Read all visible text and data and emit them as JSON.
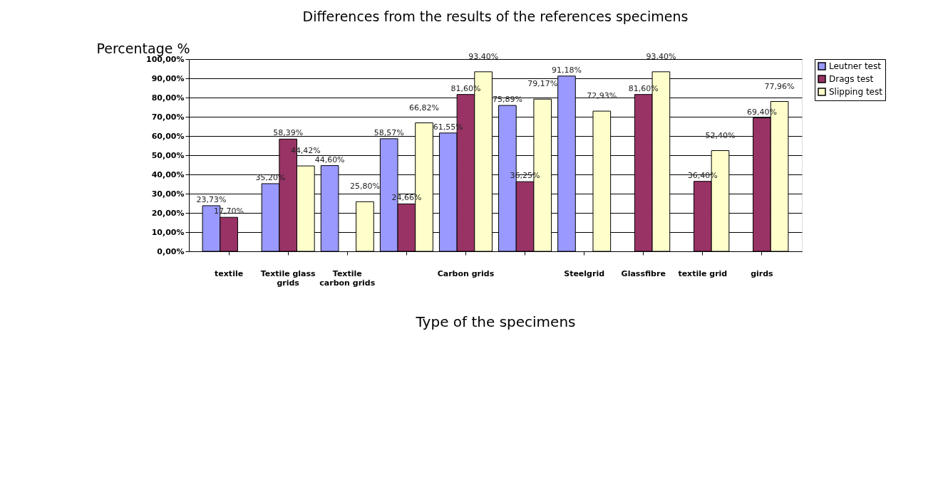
{
  "chart_data": {
    "type": "bar",
    "title": "Differences from the results of the references specimens",
    "xlabel": "Type of the specimens",
    "ylabel": "Percentage %",
    "categories": [
      "textile",
      "Textile glass grids",
      "Textile carbon grids",
      null,
      "Carbon grids",
      null,
      "Steelgrid",
      "Glassfibre",
      "textile grid",
      "girds"
    ],
    "series": [
      {
        "name": "Leutner test",
        "color": "#9999ff",
        "values": [
          23.73,
          35.2,
          44.6,
          58.57,
          61.55,
          75.89,
          91.18,
          null,
          null,
          null
        ],
        "value_labels": [
          "23,73%",
          "35,20%",
          "44,60%",
          "58,57%",
          "61,55%",
          "75,89%",
          "91,18%",
          null,
          null,
          null
        ]
      },
      {
        "name": "Drags test",
        "color": "#993366",
        "values": [
          17.7,
          58.39,
          null,
          24.66,
          81.6,
          36.25,
          null,
          81.6,
          36.4,
          69.4
        ],
        "value_labels": [
          "17,70%",
          "58,39%",
          null,
          "24,66%",
          "81,60%",
          "36,25%",
          null,
          "81,60%",
          "36,40%",
          "69,40%"
        ]
      },
      {
        "name": "Slipping test",
        "color": "#ffffcc",
        "values": [
          null,
          44.42,
          25.8,
          66.82,
          93.4,
          79.17,
          72.93,
          93.4,
          52.4,
          77.96
        ],
        "value_labels": [
          null,
          "44,42%",
          "25,80%",
          "66,82%",
          "93,40%",
          "79,17%",
          "72,93%",
          "93,40%",
          "52,40%",
          "77,96%"
        ]
      }
    ],
    "ylim": [
      0,
      100
    ],
    "yticks": [
      {
        "value": 0,
        "label": "0,00%"
      },
      {
        "value": 10,
        "label": "10,00%"
      },
      {
        "value": 20,
        "label": "20,00%"
      },
      {
        "value": 30,
        "label": "30,00%"
      },
      {
        "value": 40,
        "label": "40,00%"
      },
      {
        "value": 50,
        "label": "50,00%"
      },
      {
        "value": 60,
        "label": "60,00%"
      },
      {
        "value": 70,
        "label": "70,00%"
      },
      {
        "value": 80,
        "label": "80,00%"
      },
      {
        "value": 90,
        "label": "90,00%"
      },
      {
        "value": 100,
        "label": "100,00%"
      }
    ],
    "grid": "y",
    "legend": "right"
  }
}
